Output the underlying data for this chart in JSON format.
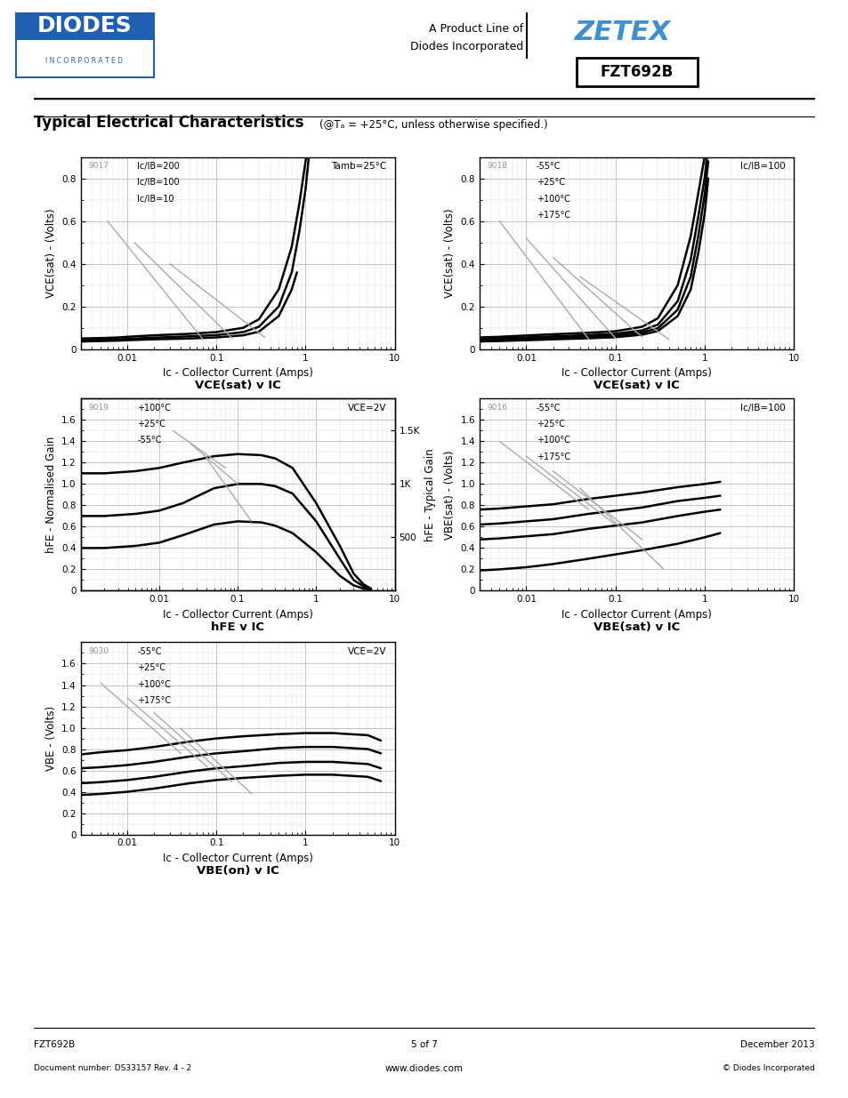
{
  "page_title": "Typical Electrical Characteristics",
  "page_subtitle": "(@Tₐ = +25°C, unless otherwise specified.)",
  "part_number": "FZT692B",
  "footer_left_1": "FZT692B",
  "footer_left_2": "Document number: DS33157 Rev. 4 - 2",
  "footer_center_1": "5 of 7",
  "footer_center_2": "www.diodes.com",
  "footer_right_1": "December 2013",
  "footer_right_2": "© Diodes Incorporated",
  "plot1": {
    "chart_id": "9017",
    "title": "VCE(sat) v IC",
    "xlabel": "Ic - Collector Current (Amps)",
    "ylabel": "VCE(sat) - (Volts)",
    "annotation_right": "Tamb=25°C",
    "annotation_left_lines": [
      "Ic/IB=200",
      "Ic/IB=100",
      "Ic/IB=10"
    ],
    "xlim": [
      0.003,
      10
    ],
    "ylim": [
      0,
      0.9
    ],
    "yticks": [
      0,
      0.2,
      0.4,
      0.6,
      0.8
    ],
    "curves": [
      {
        "x": [
          0.003,
          0.005,
          0.008,
          0.01,
          0.02,
          0.05,
          0.1,
          0.2,
          0.3,
          0.5,
          0.7,
          0.85,
          1.0,
          1.2
        ],
        "y": [
          0.05,
          0.052,
          0.055,
          0.058,
          0.065,
          0.072,
          0.08,
          0.1,
          0.14,
          0.28,
          0.48,
          0.68,
          0.88,
          1.1
        ],
        "color": "#000000",
        "lw": 1.8
      },
      {
        "x": [
          0.003,
          0.005,
          0.008,
          0.01,
          0.02,
          0.05,
          0.1,
          0.2,
          0.3,
          0.5,
          0.7,
          0.85,
          1.0,
          1.1
        ],
        "y": [
          0.042,
          0.044,
          0.046,
          0.048,
          0.054,
          0.06,
          0.066,
          0.08,
          0.105,
          0.2,
          0.36,
          0.55,
          0.75,
          0.92
        ],
        "color": "#000000",
        "lw": 1.8
      },
      {
        "x": [
          0.003,
          0.005,
          0.008,
          0.01,
          0.02,
          0.05,
          0.1,
          0.2,
          0.3,
          0.5,
          0.7,
          0.8
        ],
        "y": [
          0.036,
          0.038,
          0.04,
          0.042,
          0.046,
          0.05,
          0.055,
          0.065,
          0.082,
          0.155,
          0.28,
          0.36
        ],
        "color": "#000000",
        "lw": 1.8
      },
      {
        "x": [
          0.006,
          0.07
        ],
        "y": [
          0.6,
          0.048
        ],
        "color": "#aaaaaa",
        "lw": 1.0
      },
      {
        "x": [
          0.012,
          0.15
        ],
        "y": [
          0.5,
          0.052
        ],
        "color": "#aaaaaa",
        "lw": 1.0
      },
      {
        "x": [
          0.03,
          0.35
        ],
        "y": [
          0.4,
          0.055
        ],
        "color": "#aaaaaa",
        "lw": 1.0
      }
    ]
  },
  "plot2": {
    "chart_id": "9018",
    "title": "VCE(sat) v IC",
    "xlabel": "Ic - Collector Current (Amps)",
    "ylabel": "VCE(sat) - (Volts)",
    "annotation_right": "Ic/IB=100",
    "annotation_left_lines": [
      "-55°C",
      "+25°C",
      "+100°C",
      "+175°C"
    ],
    "xlim": [
      0.003,
      10
    ],
    "ylim": [
      0,
      0.9
    ],
    "yticks": [
      0,
      0.2,
      0.4,
      0.6,
      0.8
    ],
    "curves": [
      {
        "x": [
          0.003,
          0.005,
          0.01,
          0.02,
          0.05,
          0.1,
          0.2,
          0.3,
          0.5,
          0.7,
          0.85,
          1.0,
          1.1
        ],
        "y": [
          0.055,
          0.058,
          0.064,
          0.07,
          0.077,
          0.084,
          0.105,
          0.145,
          0.3,
          0.53,
          0.73,
          0.9,
          1.05
        ],
        "color": "#000000",
        "lw": 1.8
      },
      {
        "x": [
          0.003,
          0.005,
          0.01,
          0.02,
          0.05,
          0.1,
          0.2,
          0.3,
          0.5,
          0.7,
          0.85,
          1.0,
          1.1
        ],
        "y": [
          0.048,
          0.051,
          0.055,
          0.06,
          0.066,
          0.072,
          0.088,
          0.115,
          0.225,
          0.42,
          0.62,
          0.8,
          0.95
        ],
        "color": "#000000",
        "lw": 1.8
      },
      {
        "x": [
          0.003,
          0.005,
          0.01,
          0.02,
          0.05,
          0.1,
          0.2,
          0.3,
          0.5,
          0.7,
          0.85,
          1.0,
          1.1
        ],
        "y": [
          0.042,
          0.044,
          0.048,
          0.053,
          0.058,
          0.064,
          0.078,
          0.098,
          0.185,
          0.34,
          0.53,
          0.72,
          0.88
        ],
        "color": "#000000",
        "lw": 1.8
      },
      {
        "x": [
          0.003,
          0.005,
          0.01,
          0.02,
          0.05,
          0.1,
          0.2,
          0.3,
          0.5,
          0.7,
          0.85,
          1.0,
          1.1
        ],
        "y": [
          0.036,
          0.038,
          0.042,
          0.046,
          0.051,
          0.056,
          0.068,
          0.085,
          0.155,
          0.28,
          0.45,
          0.63,
          0.8
        ],
        "color": "#000000",
        "lw": 1.8
      },
      {
        "x": [
          0.005,
          0.05
        ],
        "y": [
          0.6,
          0.048
        ],
        "color": "#aaaaaa",
        "lw": 1.0
      },
      {
        "x": [
          0.01,
          0.1
        ],
        "y": [
          0.52,
          0.052
        ],
        "color": "#aaaaaa",
        "lw": 1.0
      },
      {
        "x": [
          0.02,
          0.2
        ],
        "y": [
          0.43,
          0.056
        ],
        "color": "#aaaaaa",
        "lw": 1.0
      },
      {
        "x": [
          0.04,
          0.4
        ],
        "y": [
          0.34,
          0.046
        ],
        "color": "#aaaaaa",
        "lw": 1.0
      }
    ]
  },
  "plot3": {
    "chart_id": "9019",
    "title": "hFE v IC",
    "xlabel": "Ic - Collector Current (Amps)",
    "ylabel_left": "hFE - Normalised Gain",
    "ylabel_right": "hFE - Typical Gain",
    "annotation_right": "VCE=2V",
    "annotation_left_lines": [
      "+100°C",
      "+25°C",
      "-55°C"
    ],
    "xlim": [
      0.001,
      10
    ],
    "ylim": [
      0,
      1.8
    ],
    "yticks": [
      0,
      0.2,
      0.4,
      0.6,
      0.8,
      1.0,
      1.2,
      1.4,
      1.6
    ],
    "yticks_right": [
      "500",
      "1K",
      "1.5K"
    ],
    "yticks_right_vals": [
      0.5,
      1.0,
      1.5
    ],
    "curves": [
      {
        "x": [
          0.001,
          0.002,
          0.005,
          0.01,
          0.02,
          0.05,
          0.1,
          0.2,
          0.3,
          0.5,
          1.0,
          2.0,
          3.0,
          4.0,
          5.0
        ],
        "y": [
          1.1,
          1.1,
          1.12,
          1.15,
          1.2,
          1.26,
          1.28,
          1.27,
          1.24,
          1.15,
          0.82,
          0.42,
          0.16,
          0.06,
          0.02
        ],
        "color": "#000000",
        "lw": 1.8
      },
      {
        "x": [
          0.001,
          0.002,
          0.005,
          0.01,
          0.02,
          0.05,
          0.1,
          0.2,
          0.3,
          0.5,
          1.0,
          2.0,
          3.0,
          4.0,
          5.0
        ],
        "y": [
          0.7,
          0.7,
          0.72,
          0.75,
          0.82,
          0.96,
          1.0,
          1.0,
          0.98,
          0.91,
          0.65,
          0.3,
          0.1,
          0.04,
          0.01
        ],
        "color": "#000000",
        "lw": 1.8
      },
      {
        "x": [
          0.001,
          0.002,
          0.005,
          0.01,
          0.02,
          0.05,
          0.1,
          0.2,
          0.3,
          0.5,
          1.0,
          2.0,
          3.0,
          4.0,
          5.0
        ],
        "y": [
          0.4,
          0.4,
          0.42,
          0.45,
          0.52,
          0.62,
          0.65,
          0.64,
          0.61,
          0.54,
          0.36,
          0.14,
          0.05,
          0.02,
          0.01
        ],
        "color": "#000000",
        "lw": 1.8
      },
      {
        "x": [
          0.015,
          0.07
        ],
        "y": [
          1.5,
          1.15
        ],
        "color": "#aaaaaa",
        "lw": 1.0
      },
      {
        "x": [
          0.025,
          0.1
        ],
        "y": [
          1.38,
          1.0
        ],
        "color": "#aaaaaa",
        "lw": 1.0
      },
      {
        "x": [
          0.04,
          0.15
        ],
        "y": [
          1.24,
          0.65
        ],
        "color": "#aaaaaa",
        "lw": 1.0
      }
    ]
  },
  "plot4": {
    "chart_id": "9016",
    "title": "VBE(sat) v IC",
    "xlabel": "Ic - Collector Current (Amps)",
    "ylabel": "VBE(sat) - (Volts)",
    "annotation_right": "Ic/IB=100",
    "annotation_left_lines": [
      "-55°C",
      "+25°C",
      "+100°C",
      "+175°C"
    ],
    "xlim": [
      0.003,
      10
    ],
    "ylim": [
      0,
      1.8
    ],
    "yticks": [
      0,
      0.2,
      0.4,
      0.6,
      0.8,
      1.0,
      1.2,
      1.4,
      1.6
    ],
    "curves": [
      {
        "x": [
          0.003,
          0.005,
          0.01,
          0.02,
          0.05,
          0.1,
          0.2,
          0.5,
          1.0,
          1.5
        ],
        "y": [
          0.76,
          0.77,
          0.79,
          0.81,
          0.86,
          0.89,
          0.92,
          0.97,
          1.0,
          1.02
        ],
        "color": "#000000",
        "lw": 1.8
      },
      {
        "x": [
          0.003,
          0.005,
          0.01,
          0.02,
          0.05,
          0.1,
          0.2,
          0.5,
          1.0,
          1.5
        ],
        "y": [
          0.62,
          0.63,
          0.65,
          0.67,
          0.72,
          0.75,
          0.78,
          0.84,
          0.87,
          0.89
        ],
        "color": "#000000",
        "lw": 1.8
      },
      {
        "x": [
          0.003,
          0.005,
          0.01,
          0.02,
          0.05,
          0.1,
          0.2,
          0.5,
          1.0,
          1.5
        ],
        "y": [
          0.48,
          0.49,
          0.51,
          0.53,
          0.58,
          0.61,
          0.64,
          0.7,
          0.74,
          0.76
        ],
        "color": "#000000",
        "lw": 1.8
      },
      {
        "x": [
          0.003,
          0.005,
          0.01,
          0.02,
          0.05,
          0.1,
          0.2,
          0.5,
          1.0,
          1.5
        ],
        "y": [
          0.19,
          0.2,
          0.22,
          0.25,
          0.3,
          0.34,
          0.38,
          0.44,
          0.5,
          0.54
        ],
        "color": "#000000",
        "lw": 1.8
      },
      {
        "x": [
          0.005,
          0.05
        ],
        "y": [
          1.4,
          0.76
        ],
        "color": "#aaaaaa",
        "lw": 1.0
      },
      {
        "x": [
          0.01,
          0.1
        ],
        "y": [
          1.26,
          0.62
        ],
        "color": "#aaaaaa",
        "lw": 1.0
      },
      {
        "x": [
          0.02,
          0.2
        ],
        "y": [
          1.12,
          0.48
        ],
        "color": "#aaaaaa",
        "lw": 1.0
      },
      {
        "x": [
          0.04,
          0.35
        ],
        "y": [
          0.96,
          0.2
        ],
        "color": "#aaaaaa",
        "lw": 1.0
      }
    ]
  },
  "plot5": {
    "chart_id": "9030",
    "title": "VBE(on) v IC",
    "xlabel": "Ic - Collector Current (Amps)",
    "ylabel": "VBE - (Volts)",
    "annotation_right": "VCE=2V",
    "annotation_left_lines": [
      "-55°C",
      "+25°C",
      "+100°C",
      "+175°C"
    ],
    "xlim": [
      0.003,
      10
    ],
    "ylim": [
      0,
      1.8
    ],
    "yticks": [
      0,
      0.2,
      0.4,
      0.6,
      0.8,
      1.0,
      1.2,
      1.4,
      1.6
    ],
    "curves": [
      {
        "x": [
          0.003,
          0.005,
          0.01,
          0.02,
          0.05,
          0.1,
          0.2,
          0.5,
          1.0,
          2.0,
          5.0,
          7.0
        ],
        "y": [
          0.75,
          0.77,
          0.79,
          0.82,
          0.87,
          0.9,
          0.92,
          0.94,
          0.95,
          0.95,
          0.93,
          0.88
        ],
        "color": "#000000",
        "lw": 1.8
      },
      {
        "x": [
          0.003,
          0.005,
          0.01,
          0.02,
          0.05,
          0.1,
          0.2,
          0.5,
          1.0,
          2.0,
          5.0,
          7.0
        ],
        "y": [
          0.62,
          0.63,
          0.65,
          0.68,
          0.73,
          0.76,
          0.78,
          0.81,
          0.82,
          0.82,
          0.8,
          0.76
        ],
        "color": "#000000",
        "lw": 1.8
      },
      {
        "x": [
          0.003,
          0.005,
          0.01,
          0.02,
          0.05,
          0.1,
          0.2,
          0.5,
          1.0,
          2.0,
          5.0,
          7.0
        ],
        "y": [
          0.48,
          0.49,
          0.51,
          0.54,
          0.59,
          0.62,
          0.64,
          0.67,
          0.68,
          0.68,
          0.66,
          0.62
        ],
        "color": "#000000",
        "lw": 1.8
      },
      {
        "x": [
          0.003,
          0.005,
          0.01,
          0.02,
          0.05,
          0.1,
          0.2,
          0.5,
          1.0,
          2.0,
          5.0,
          7.0
        ],
        "y": [
          0.37,
          0.38,
          0.4,
          0.43,
          0.48,
          0.51,
          0.53,
          0.55,
          0.56,
          0.56,
          0.54,
          0.5
        ],
        "color": "#000000",
        "lw": 1.8
      },
      {
        "x": [
          0.005,
          0.04
        ],
        "y": [
          1.42,
          0.76
        ],
        "color": "#aaaaaa",
        "lw": 1.0
      },
      {
        "x": [
          0.01,
          0.08
        ],
        "y": [
          1.28,
          0.63
        ],
        "color": "#aaaaaa",
        "lw": 1.0
      },
      {
        "x": [
          0.02,
          0.15
        ],
        "y": [
          1.14,
          0.49
        ],
        "color": "#aaaaaa",
        "lw": 1.0
      },
      {
        "x": [
          0.04,
          0.25
        ],
        "y": [
          0.99,
          0.38
        ],
        "color": "#aaaaaa",
        "lw": 1.0
      }
    ]
  }
}
